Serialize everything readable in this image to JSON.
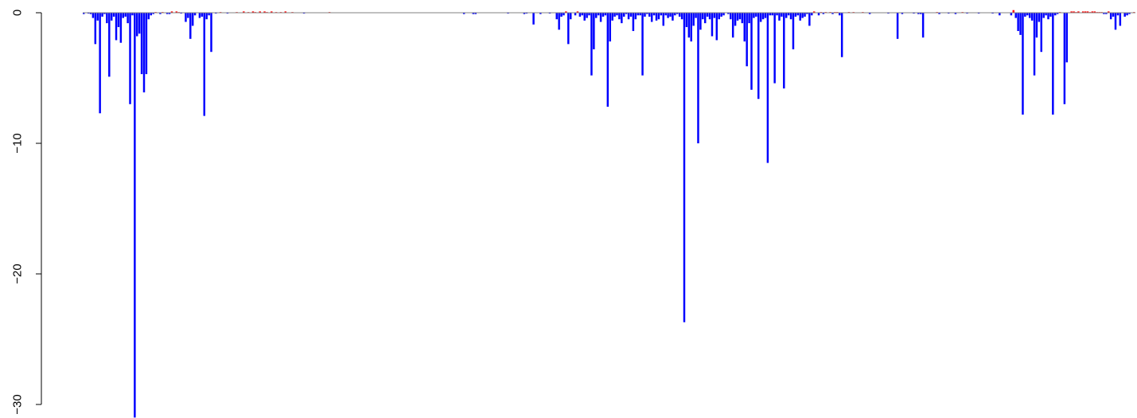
{
  "chart_data": {
    "type": "bar",
    "title": "",
    "xlabel": "",
    "ylabel": "",
    "ylim": [
      -31,
      0
    ],
    "grid": false,
    "legend": "none",
    "yticks": [
      0,
      -10,
      -20,
      -30
    ],
    "ytick_labels": [
      "0",
      "−10",
      "−20",
      "−30"
    ],
    "colors": {
      "negative": "#0000ff",
      "positive": "#ff0000",
      "baseline": "#808080"
    },
    "series": [
      {
        "name": "",
        "values": [
          -0.1,
          0,
          -0.05,
          -0.1,
          -0.4,
          -2.4,
          -0.6,
          -7.7,
          -0.3,
          -0.1,
          -0.8,
          -4.9,
          -0.6,
          -0.3,
          -2.1,
          -1.1,
          -2.3,
          -0.4,
          -0.3,
          -0.8,
          -7.0,
          -0.2,
          -31.0,
          -1.8,
          -1.6,
          -4.7,
          -6.1,
          -4.7,
          -0.5,
          -0.2,
          -0.1,
          0.05,
          0,
          -0.1,
          0.05,
          0,
          -0.1,
          -0.1,
          0.1,
          0,
          0.1,
          0.05,
          -0.05,
          0,
          -0.7,
          -0.4,
          -2.0,
          -1.0,
          -0.2,
          0,
          -0.4,
          -0.3,
          -7.9,
          -0.5,
          -0.2,
          -3.0,
          0,
          -0.05,
          0,
          0.05,
          0,
          0,
          -0.05,
          0,
          0,
          0,
          0.05,
          0,
          0,
          0.1,
          0,
          0.05,
          0,
          0.1,
          0.05,
          0,
          0.1,
          0,
          0.1,
          0.05,
          0,
          0.1,
          0,
          0.05,
          0,
          0.05,
          0,
          0.1,
          0,
          0,
          0.05,
          0,
          0,
          0,
          0,
          -0.05,
          0,
          0,
          0,
          0,
          0,
          0,
          0,
          0,
          0,
          0,
          0.05,
          0,
          0,
          0,
          0,
          0,
          0,
          0,
          0,
          0,
          0,
          0,
          0,
          0,
          0,
          0,
          0,
          0,
          0,
          0,
          0,
          0,
          0,
          0,
          0,
          0,
          0,
          0,
          0,
          0,
          0,
          0,
          0,
          0,
          0,
          0,
          0,
          0,
          0,
          0,
          0,
          0,
          0,
          0,
          0,
          0,
          0,
          0,
          0,
          0,
          0,
          0,
          0,
          0,
          0,
          0,
          0,
          0,
          -0.1,
          0,
          0,
          0,
          -0.1,
          -0.1,
          0,
          0,
          0,
          0,
          0,
          0,
          0,
          0,
          0,
          0,
          0,
          0,
          0,
          -0.05,
          0,
          0,
          0,
          0,
          0,
          0,
          -0.1,
          -0.05,
          0,
          0,
          -0.9,
          0,
          0,
          -0.1,
          0,
          0,
          0,
          -0.05,
          0,
          0,
          -0.5,
          -1.3,
          -0.3,
          -0.2,
          0.1,
          -2.4,
          -0.5,
          0,
          -0.2,
          0.1,
          -0.3,
          -0.2,
          -0.6,
          -0.4,
          -0.2,
          -4.8,
          -2.8,
          -0.4,
          -0.2,
          -0.7,
          -0.3,
          -0.2,
          -7.2,
          -2.2,
          -0.6,
          -0.3,
          -0.2,
          -0.5,
          -0.8,
          -0.3,
          -0.1,
          -0.5,
          -0.3,
          -1.4,
          -0.5,
          -0.2,
          -0.2,
          -4.8,
          -0.3,
          -0.1,
          -0.3,
          -0.7,
          -0.2,
          -0.6,
          -0.5,
          -0.2,
          -1.0,
          -0.2,
          -0.4,
          -0.3,
          -0.6,
          -0.2,
          -0.1,
          -0.3,
          -0.5,
          -23.7,
          -1.1,
          -1.9,
          -2.2,
          -1.0,
          -0.4,
          -10.0,
          -1.3,
          -0.5,
          -0.8,
          -0.3,
          -0.5,
          -1.8,
          -0.4,
          -2.1,
          -0.5,
          -0.3,
          -0.2,
          0,
          -0.1,
          -0.5,
          -1.9,
          -1.0,
          -0.6,
          -0.5,
          -0.8,
          -2.2,
          -4.1,
          -0.8,
          -5.9,
          -0.4,
          -0.3,
          -6.6,
          -0.7,
          -0.5,
          -0.4,
          -11.5,
          -0.2,
          -0.2,
          -5.4,
          -0.2,
          -0.6,
          -0.3,
          -5.8,
          -0.4,
          -0.2,
          -0.5,
          -2.8,
          -0.3,
          -0.2,
          -0.6,
          -0.4,
          -0.3,
          -0.1,
          -1.0,
          -0.2,
          0.1,
          0,
          -0.2,
          0.05,
          -0.1,
          0.05,
          0,
          0.05,
          -0.1,
          0.05,
          0.05,
          -0.2,
          -3.4,
          0,
          0,
          0.05,
          0,
          0.05,
          0,
          0,
          0,
          0.05,
          0,
          0,
          -0.1,
          0,
          0,
          0,
          0,
          0,
          0,
          0,
          -0.05,
          0,
          0,
          0,
          -2.0,
          0,
          -0.1,
          0,
          0,
          0,
          0,
          -0.05,
          0,
          -0.1,
          -0.1,
          -1.9,
          0,
          0,
          0,
          0,
          0,
          0.05,
          -0.1,
          0,
          0,
          0,
          -0.05,
          0,
          0,
          -0.1,
          0,
          0,
          0.05,
          0,
          -0.05,
          0,
          0,
          0,
          0,
          -0.05,
          0,
          0,
          0,
          0,
          0,
          -0.05,
          0,
          0,
          -0.2,
          0,
          0,
          0,
          0,
          -0.2,
          0.2,
          -0.4,
          -1.4,
          -1.7,
          -7.8,
          -0.3,
          -0.2,
          -0.4,
          -0.6,
          -4.8,
          -1.9,
          -0.7,
          -3.0,
          -0.4,
          -0.2,
          -0.5,
          -0.3,
          -7.8,
          -0.2,
          -0.1,
          0.05,
          0,
          -7.0,
          -3.8,
          0,
          0.1,
          0.1,
          0.05,
          0.1,
          0,
          0.1,
          0.1,
          0.1,
          0.05,
          0.1,
          0.1,
          0.05,
          0.05,
          0.05,
          -0.1,
          -0.1,
          0.1,
          -0.5,
          -0.3,
          -1.3,
          -0.2,
          -1.0,
          0,
          -0.3,
          -0.2,
          -0.1,
          0,
          0.05
        ]
      }
    ]
  }
}
